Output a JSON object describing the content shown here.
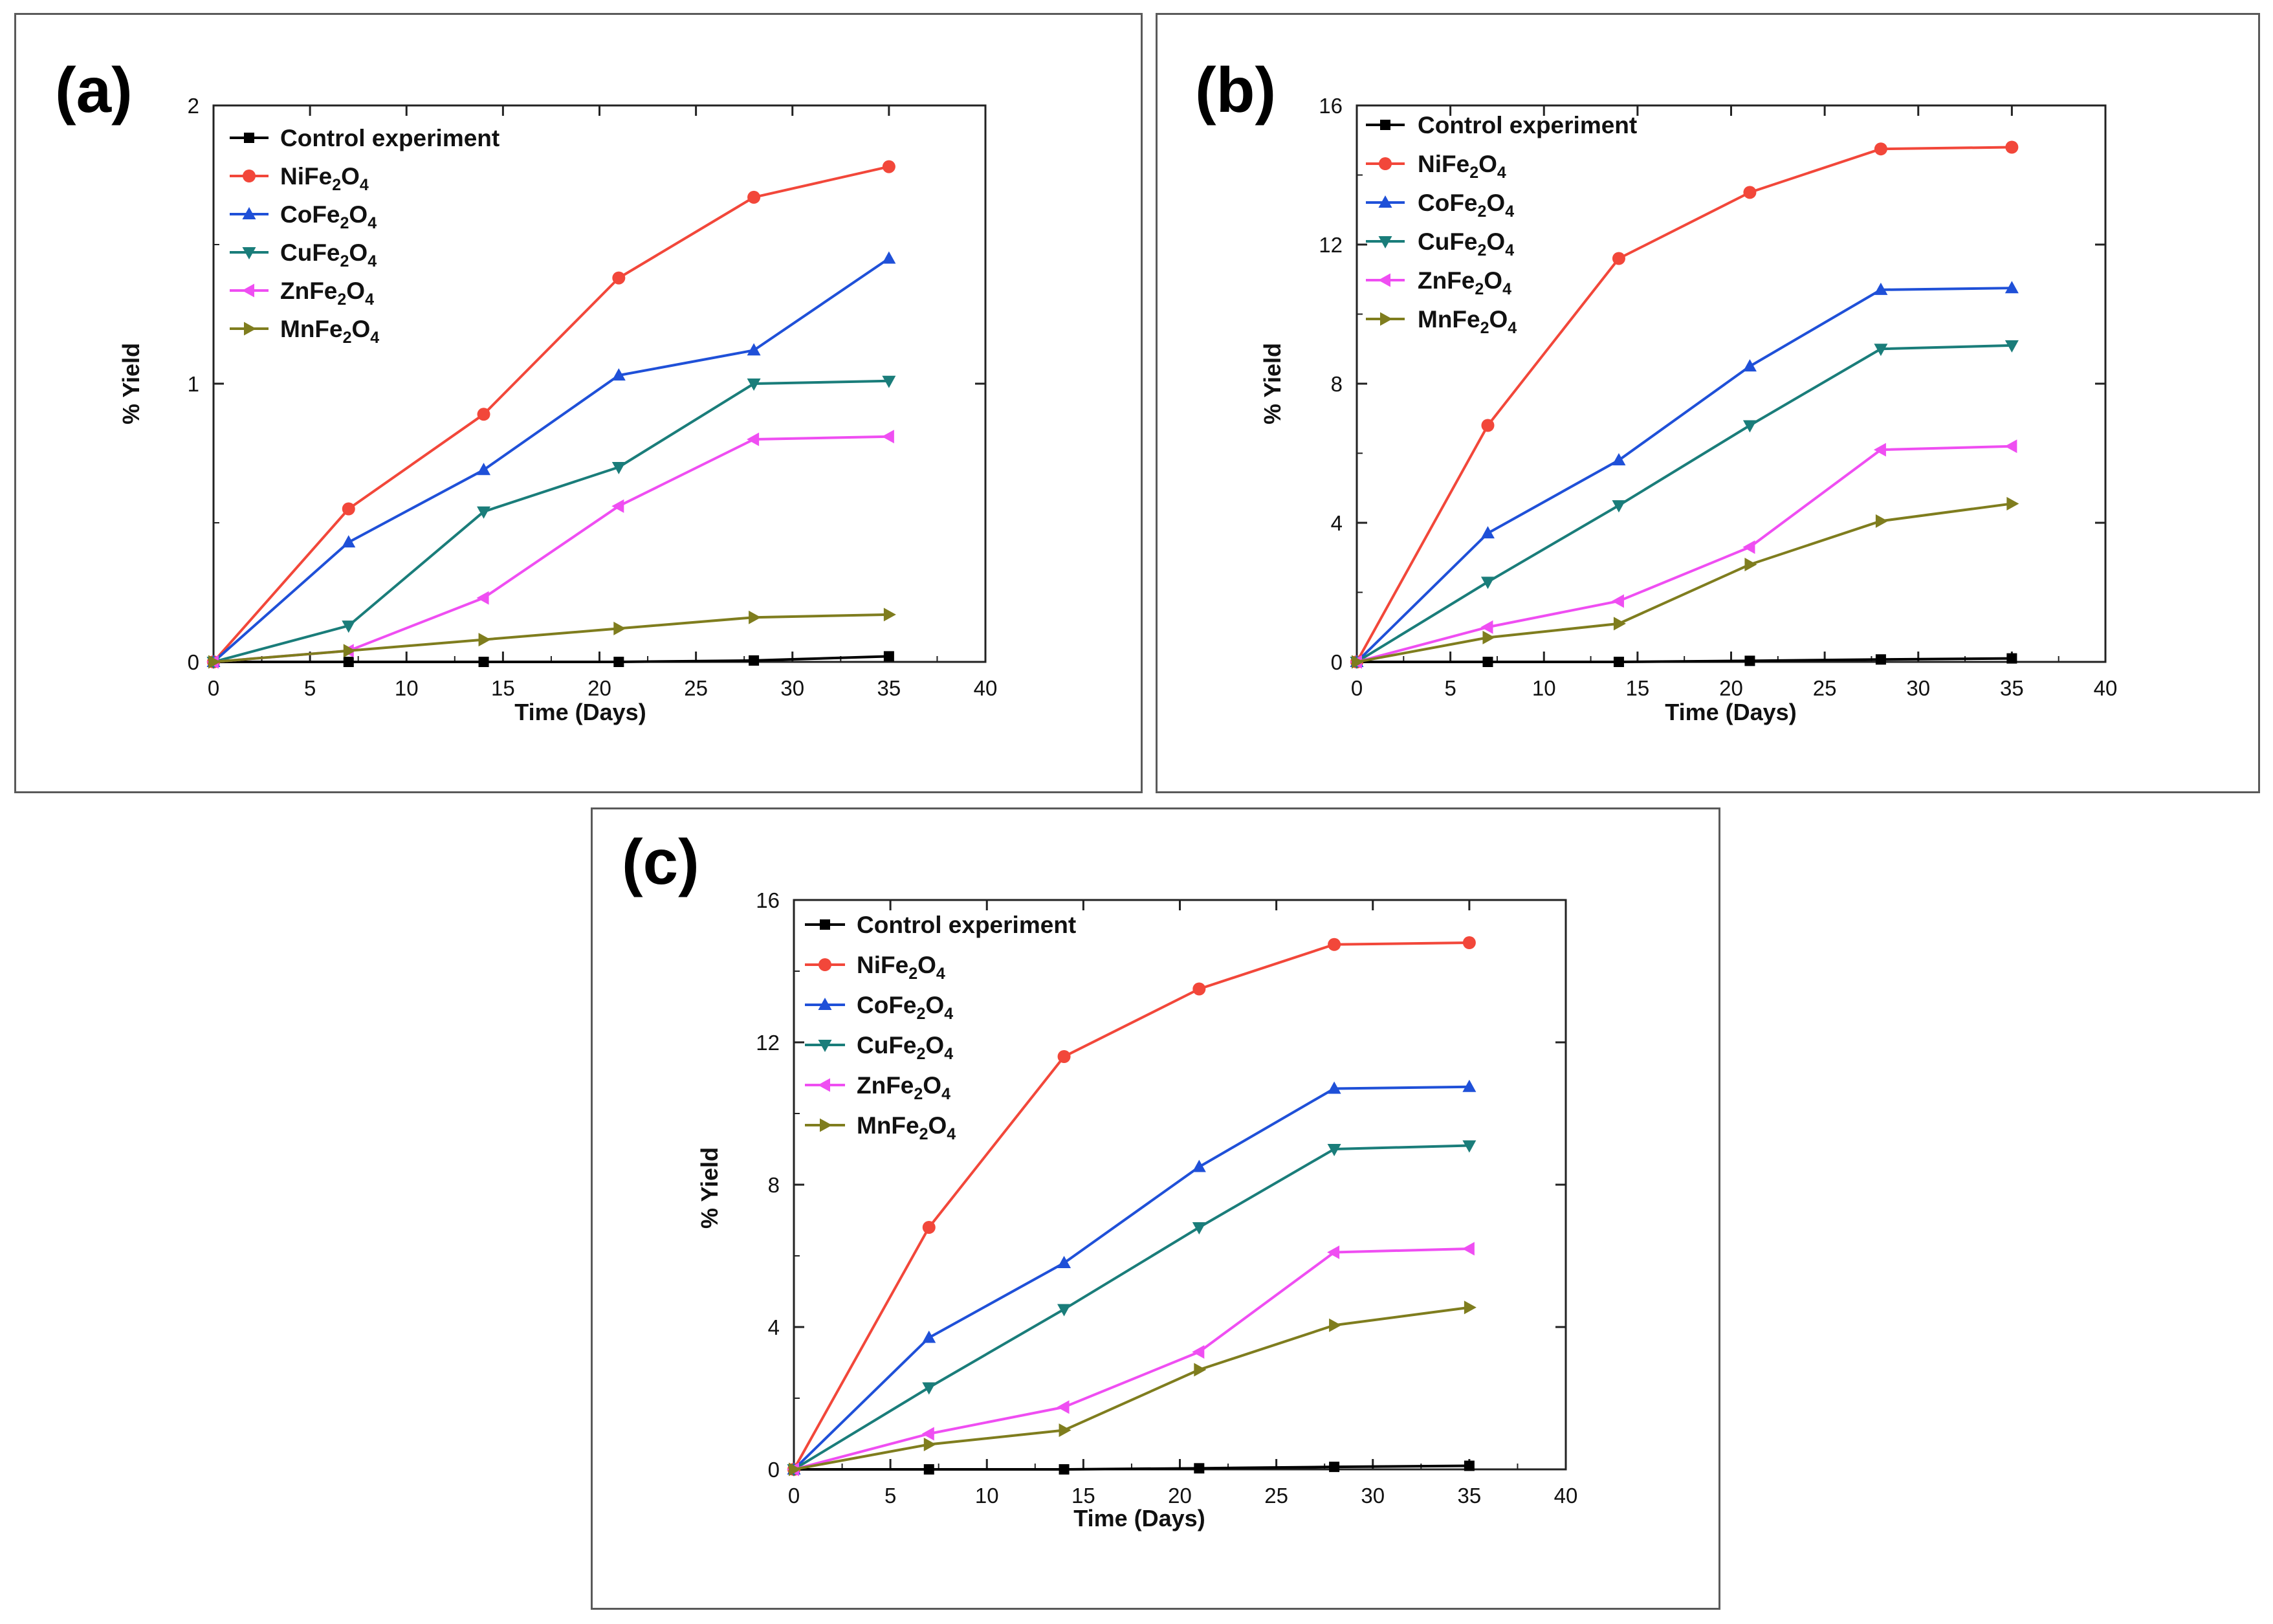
{
  "chart_data": [
    {
      "type": "line",
      "panel_label": "(a)",
      "xlabel": "Time (Days)",
      "ylabel": "% Yield",
      "xlim": [
        0,
        40
      ],
      "ylim": [
        0,
        2
      ],
      "xticks": [
        0,
        5,
        10,
        15,
        20,
        25,
        30,
        35,
        40
      ],
      "yticks": [
        0,
        1,
        2
      ],
      "x": [
        0,
        7,
        14,
        21,
        28,
        35
      ],
      "legend_position": "top-left",
      "series": [
        {
          "name": "Control experiment",
          "formula": [
            "Control experiment"
          ],
          "color": "#000000",
          "marker": "square",
          "values": [
            0,
            0,
            0,
            0,
            0.005,
            0.02
          ]
        },
        {
          "name": "NiFe2O4",
          "formula": [
            "NiFe",
            "2",
            "O",
            "4"
          ],
          "color": "#f2473a",
          "marker": "circle",
          "values": [
            0,
            0.55,
            0.89,
            1.38,
            1.67,
            1.78
          ]
        },
        {
          "name": "CoFe2O4",
          "formula": [
            "CoFe",
            "2",
            "O",
            "4"
          ],
          "color": "#1f50d8",
          "marker": "triangle-up",
          "values": [
            0,
            0.43,
            0.69,
            1.03,
            1.12,
            1.45
          ]
        },
        {
          "name": "CuFe2O4",
          "formula": [
            "CuFe",
            "2",
            "O",
            "4"
          ],
          "color": "#1a7d7a",
          "marker": "triangle-down",
          "values": [
            0,
            0.13,
            0.54,
            0.7,
            1.0,
            1.01
          ]
        },
        {
          "name": "ZnFe2O4",
          "formula": [
            "ZnFe",
            "2",
            "O",
            "4"
          ],
          "color": "#ef4ef2",
          "marker": "triangle-left",
          "values": [
            0,
            0.04,
            0.23,
            0.56,
            0.8,
            0.81
          ]
        },
        {
          "name": "MnFe2O4",
          "formula": [
            "MnFe",
            "2",
            "O",
            "4"
          ],
          "color": "#7f7d1e",
          "marker": "triangle-right",
          "values": [
            0,
            0.04,
            0.08,
            0.12,
            0.16,
            0.17
          ]
        }
      ]
    },
    {
      "type": "line",
      "panel_label": "(b)",
      "xlabel": "Time (Days)",
      "ylabel": "% Yield",
      "xlim": [
        0,
        40
      ],
      "ylim": [
        0,
        16
      ],
      "xticks": [
        0,
        5,
        10,
        15,
        20,
        25,
        30,
        35,
        40
      ],
      "yticks": [
        0,
        4,
        8,
        12,
        16
      ],
      "x": [
        0,
        7,
        14,
        21,
        28,
        35
      ],
      "legend_position": "top-left",
      "series": [
        {
          "name": "Control experiment",
          "formula": [
            "Control experiment"
          ],
          "color": "#000000",
          "marker": "square",
          "values": [
            0,
            0,
            0,
            0.03,
            0.07,
            0.1
          ]
        },
        {
          "name": "NiFe2O4",
          "formula": [
            "NiFe",
            "2",
            "O",
            "4"
          ],
          "color": "#f2473a",
          "marker": "circle",
          "values": [
            0,
            6.8,
            11.6,
            13.5,
            14.75,
            14.8
          ]
        },
        {
          "name": "CoFe2O4",
          "formula": [
            "CoFe",
            "2",
            "O",
            "4"
          ],
          "color": "#1f50d8",
          "marker": "triangle-up",
          "values": [
            0,
            3.7,
            5.8,
            8.5,
            10.7,
            10.75
          ]
        },
        {
          "name": "CuFe2O4",
          "formula": [
            "CuFe",
            "2",
            "O",
            "4"
          ],
          "color": "#1a7d7a",
          "marker": "triangle-down",
          "values": [
            0,
            2.3,
            4.5,
            6.8,
            9.0,
            9.1
          ]
        },
        {
          "name": "ZnFe2O4",
          "formula": [
            "ZnFe",
            "2",
            "O",
            "4"
          ],
          "color": "#ef4ef2",
          "marker": "triangle-left",
          "values": [
            0,
            1.0,
            1.75,
            3.3,
            6.1,
            6.2
          ]
        },
        {
          "name": "MnFe2O4",
          "formula": [
            "MnFe",
            "2",
            "O",
            "4"
          ],
          "color": "#7f7d1e",
          "marker": "triangle-right",
          "values": [
            0,
            0.7,
            1.1,
            2.8,
            4.05,
            4.55
          ]
        }
      ]
    },
    {
      "type": "line",
      "panel_label": "(c)",
      "xlabel": "Time (Days)",
      "ylabel": "% Yield",
      "xlim": [
        0,
        40
      ],
      "ylim": [
        0,
        16
      ],
      "xticks": [
        0,
        5,
        10,
        15,
        20,
        25,
        30,
        35,
        40
      ],
      "yticks": [
        0,
        4,
        8,
        12,
        16
      ],
      "x": [
        0,
        7,
        14,
        21,
        28,
        35
      ],
      "legend_position": "top-left",
      "series": [
        {
          "name": "Control experiment",
          "formula": [
            "Control experiment"
          ],
          "color": "#000000",
          "marker": "square",
          "values": [
            0,
            0,
            0,
            0.03,
            0.07,
            0.1
          ]
        },
        {
          "name": "NiFe2O4",
          "formula": [
            "NiFe",
            "2",
            "O",
            "4"
          ],
          "color": "#f2473a",
          "marker": "circle",
          "values": [
            0,
            6.8,
            11.6,
            13.5,
            14.75,
            14.8
          ]
        },
        {
          "name": "CoFe2O4",
          "formula": [
            "CoFe",
            "2",
            "O",
            "4"
          ],
          "color": "#1f50d8",
          "marker": "triangle-up",
          "values": [
            0,
            3.7,
            5.8,
            8.5,
            10.7,
            10.75
          ]
        },
        {
          "name": "CuFe2O4",
          "formula": [
            "CuFe",
            "2",
            "O",
            "4"
          ],
          "color": "#1a7d7a",
          "marker": "triangle-down",
          "values": [
            0,
            2.3,
            4.5,
            6.8,
            9.0,
            9.1
          ]
        },
        {
          "name": "ZnFe2O4",
          "formula": [
            "ZnFe",
            "2",
            "O",
            "4"
          ],
          "color": "#ef4ef2",
          "marker": "triangle-left",
          "values": [
            0,
            1.0,
            1.75,
            3.3,
            6.1,
            6.2
          ]
        },
        {
          "name": "MnFe2O4",
          "formula": [
            "MnFe",
            "2",
            "O",
            "4"
          ],
          "color": "#7f7d1e",
          "marker": "triangle-right",
          "values": [
            0,
            0.7,
            1.1,
            2.8,
            4.05,
            4.55
          ]
        }
      ]
    }
  ]
}
